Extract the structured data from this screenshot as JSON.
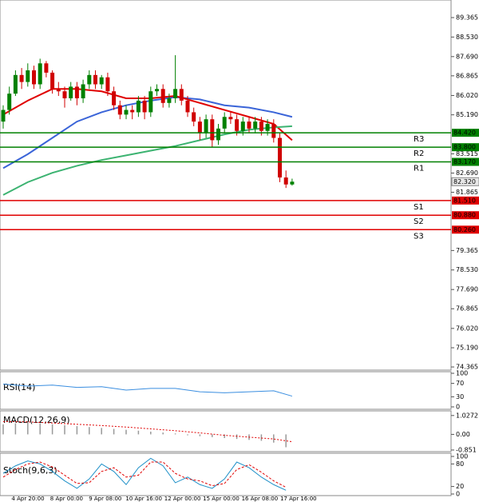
{
  "chart_data": [
    {
      "type": "candlestick",
      "panel": "price",
      "ylim": [
        74.23,
        90.12
      ],
      "yticks": [
        89.365,
        {
          "value": 88.53,
          "label": "88.530"
        },
        {
          "value": 87.69,
          "label": "87.690"
        },
        86.865,
        {
          "value": 86.02,
          "label": "86.020"
        },
        {
          "value": 85.19,
          "label": "85.190"
        },
        83.515,
        {
          "value": 82.69,
          "label": "82.690"
        },
        81.865,
        79.365,
        {
          "value": 78.53,
          "label": "78.530"
        },
        {
          "value": 77.69,
          "label": "77.690"
        },
        76.865,
        {
          "value": 76.02,
          "label": "76.020"
        },
        {
          "value": 75.19,
          "label": "75.190"
        },
        74.365
      ],
      "open": [
        84.9,
        85.4,
        86.1,
        86.9,
        86.6,
        87.1,
        86.5,
        87.4,
        87.0,
        86.3,
        86.2,
        85.9,
        86.4,
        85.9,
        86.5,
        86.9,
        86.5,
        86.8,
        86.2,
        85.6,
        85.2,
        85.4,
        85.3,
        85.8,
        85.3,
        86.2,
        86.3,
        85.7,
        85.9,
        86.3,
        85.8,
        85.3,
        84.9,
        84.4,
        85.0,
        84.1,
        84.6,
        85.1,
        85.0,
        84.5,
        84.9,
        84.6,
        84.9,
        84.5,
        84.8,
        84.2,
        82.5,
        82.2
      ],
      "high": [
        85.6,
        86.4,
        87.1,
        87.2,
        87.4,
        87.3,
        87.6,
        87.5,
        87.1,
        86.6,
        86.4,
        86.6,
        86.6,
        86.7,
        87.1,
        87.1,
        86.9,
        87.0,
        86.4,
        85.8,
        85.6,
        85.6,
        86.0,
        86.0,
        86.4,
        86.5,
        86.5,
        86.1,
        87.75,
        86.5,
        86.0,
        85.5,
        85.1,
        85.2,
        85.2,
        84.8,
        85.3,
        85.3,
        85.2,
        85.1,
        85.1,
        85.1,
        85.1,
        85.0,
        85.0,
        84.4,
        82.8,
        82.45
      ],
      "low": [
        84.6,
        85.2,
        86.0,
        86.3,
        86.4,
        86.3,
        86.3,
        86.8,
        86.1,
        86.0,
        85.5,
        85.8,
        85.6,
        85.7,
        86.3,
        86.3,
        86.3,
        86.0,
        85.4,
        85.0,
        85.0,
        85.0,
        85.1,
        85.0,
        85.1,
        86.0,
        85.5,
        85.5,
        85.7,
        85.6,
        85.1,
        84.7,
        84.1,
        84.2,
        83.8,
        83.9,
        84.4,
        84.8,
        84.3,
        84.3,
        84.4,
        84.4,
        84.3,
        84.3,
        84.0,
        82.3,
        82.05,
        82.15
      ],
      "close": [
        85.4,
        86.1,
        86.9,
        86.6,
        87.1,
        86.5,
        87.4,
        87.0,
        86.3,
        86.2,
        85.9,
        86.4,
        85.9,
        86.5,
        86.9,
        86.5,
        86.8,
        86.2,
        85.6,
        85.2,
        85.4,
        85.3,
        85.8,
        85.3,
        86.2,
        86.3,
        85.7,
        85.9,
        86.3,
        85.8,
        85.3,
        84.9,
        84.4,
        85.0,
        84.1,
        84.6,
        85.1,
        85.0,
        84.5,
        84.9,
        84.6,
        84.9,
        84.5,
        84.8,
        84.2,
        82.5,
        82.2,
        82.32
      ],
      "up_color": "#008000",
      "down_color": "#d00000",
      "current": {
        "value": 82.32,
        "label": "82.320"
      },
      "lines": [
        {
          "color": "#3a64d8",
          "x": [
            0,
            4,
            8,
            12,
            16,
            20,
            24,
            28,
            32,
            36,
            40,
            44,
            47
          ],
          "values": [
            82.9,
            83.5,
            84.2,
            84.9,
            85.3,
            85.6,
            85.8,
            85.95,
            85.85,
            85.6,
            85.5,
            85.3,
            85.1
          ]
        },
        {
          "color": "#e00000",
          "x": [
            0,
            4,
            8,
            12,
            16,
            20,
            24,
            28,
            32,
            36,
            40,
            44,
            47
          ],
          "values": [
            85.2,
            85.8,
            86.3,
            86.3,
            86.2,
            85.9,
            85.9,
            86.0,
            85.7,
            85.4,
            85.1,
            84.8,
            84.1
          ]
        },
        {
          "color": "#3cb371",
          "x": [
            0,
            4,
            8,
            12,
            16,
            20,
            24,
            28,
            32,
            36,
            40,
            44,
            47
          ],
          "values": [
            81.75,
            82.3,
            82.7,
            83.0,
            83.25,
            83.45,
            83.65,
            83.85,
            84.1,
            84.35,
            84.55,
            84.65,
            84.7
          ]
        }
      ],
      "levels": [
        {
          "name": "R3",
          "value": 84.42,
          "value_label": "84.420",
          "color": "#008000"
        },
        {
          "name": "R2",
          "value": 83.8,
          "value_label": "83.800",
          "color": "#008000"
        },
        {
          "name": "R1",
          "value": 83.17,
          "value_label": "83.170",
          "color": "#008000"
        },
        {
          "name": "S1",
          "value": 81.51,
          "value_label": "81.510",
          "color": "#e00000"
        },
        {
          "name": "S2",
          "value": 80.88,
          "value_label": "80.880",
          "color": "#e00000"
        },
        {
          "name": "S3",
          "value": 80.26,
          "value_label": "80.260",
          "color": "#e00000"
        }
      ],
      "x_labels": [
        "4 Apr 20:00",
        "8 Apr 00:00",
        "9 Apr 08:00",
        "10 Apr 16:00",
        "12 Apr 00:00",
        "15 Apr 00:00",
        "16 Apr 08:00",
        "17 Apr 16:00"
      ]
    },
    {
      "type": "line",
      "panel": "rsi",
      "title": "RSI(14)",
      "ylim": [
        0,
        100
      ],
      "yticks": [
        100,
        70,
        30,
        0
      ],
      "x": [
        0,
        4,
        8,
        12,
        16,
        20,
        24,
        28,
        32,
        36,
        40,
        44,
        47
      ],
      "series": [
        {
          "color": "#3a8ee0",
          "values": [
            68,
            62,
            65,
            58,
            60,
            50,
            55,
            55,
            45,
            42,
            45,
            48,
            32
          ]
        }
      ]
    },
    {
      "type": "macd",
      "panel": "macd",
      "title": "MACD(12,26,9)",
      "ylim": [
        -0.94,
        1.28
      ],
      "yticks": [
        1.0272,
        {
          "value": 0,
          "label": "0.00"
        },
        -0.851
      ],
      "hist_x": [
        0,
        2,
        4,
        6,
        8,
        10,
        12,
        14,
        16,
        18,
        20,
        22,
        24,
        26,
        28,
        30,
        32,
        34,
        36,
        38,
        40,
        42,
        44,
        46
      ],
      "histogram": [
        0.55,
        0.6,
        0.65,
        0.6,
        0.55,
        0.5,
        0.45,
        0.4,
        0.35,
        0.3,
        0.25,
        0.2,
        0.15,
        0.1,
        0.05,
        -0.05,
        -0.1,
        -0.15,
        -0.2,
        -0.25,
        -0.3,
        -0.35,
        -0.45,
        -0.7
      ],
      "hist_color": "#999999",
      "signal_x": [
        0,
        4,
        8,
        12,
        16,
        20,
        24,
        28,
        32,
        36,
        40,
        44,
        47
      ],
      "signal": [
        0.7,
        0.68,
        0.62,
        0.55,
        0.48,
        0.4,
        0.3,
        0.2,
        0.08,
        -0.05,
        -0.15,
        -0.25,
        -0.4
      ],
      "signal_color": "#e00000"
    },
    {
      "type": "line",
      "panel": "stoch",
      "title": "Stoch(9,6,3)",
      "ylim": [
        0,
        100
      ],
      "yticks": [
        100,
        80,
        20,
        0
      ],
      "x": [
        0,
        2,
        4,
        6,
        8,
        10,
        12,
        14,
        16,
        18,
        20,
        22,
        24,
        26,
        28,
        30,
        32,
        34,
        36,
        38,
        40,
        42,
        44,
        46
      ],
      "series": [
        {
          "color": "#1e90c8",
          "values": [
            55,
            75,
            88,
            80,
            60,
            35,
            15,
            40,
            80,
            60,
            25,
            70,
            95,
            75,
            30,
            45,
            25,
            15,
            40,
            85,
            70,
            45,
            25,
            10
          ]
        },
        {
          "color": "#e00000",
          "dashed": true,
          "values": [
            45,
            65,
            80,
            85,
            72,
            50,
            28,
            30,
            60,
            70,
            45,
            50,
            85,
            85,
            55,
            40,
            35,
            22,
            28,
            65,
            78,
            58,
            35,
            18
          ]
        }
      ]
    }
  ]
}
